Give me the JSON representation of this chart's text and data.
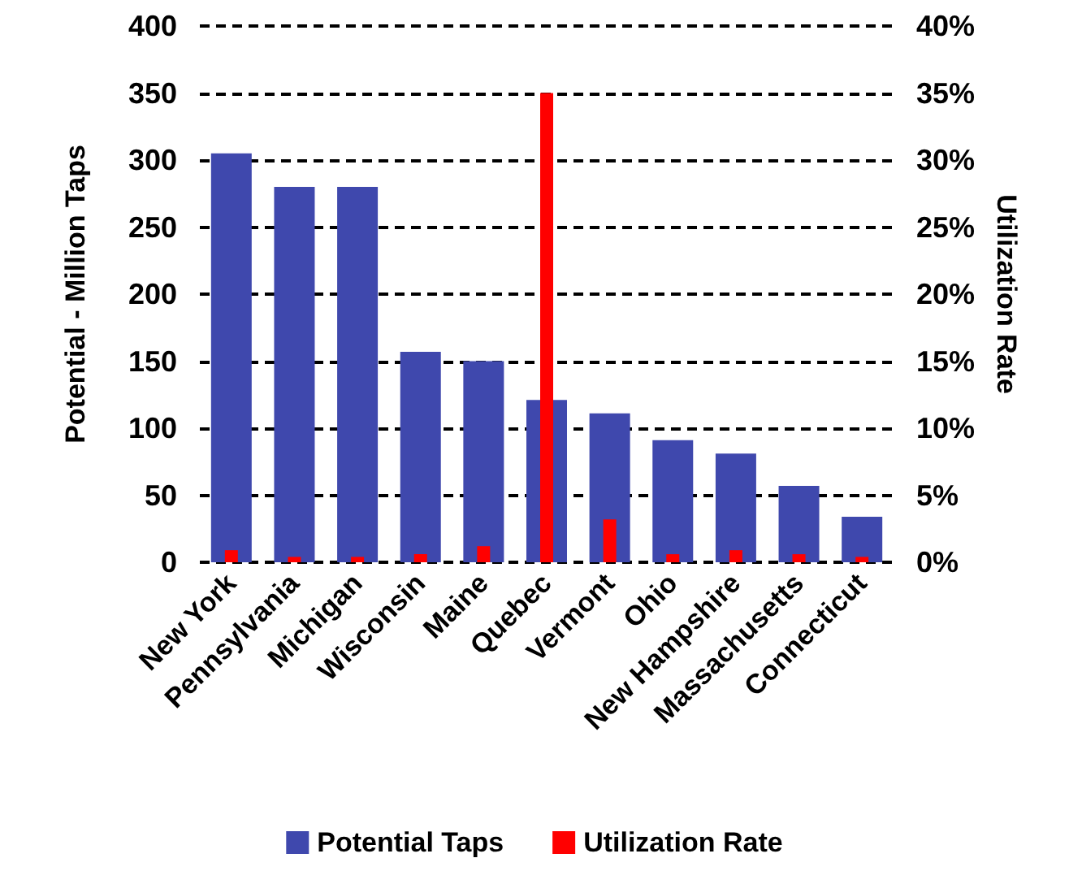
{
  "chart_data": {
    "type": "bar",
    "ylabel": "Potential - Million Taps",
    "y2label": "Utilization Rate",
    "categories": [
      "New York",
      "Pennsylvania",
      "Michigan",
      "Wisconsin",
      "Maine",
      "Quebec",
      "Vermont",
      "Ohio",
      "New Hampshire",
      "Massachusetts",
      "Connecticut"
    ],
    "series": [
      {
        "name": "Potential Taps",
        "color": "#3f48ad",
        "values": [
          305,
          280,
          280,
          157,
          150,
          121,
          111,
          91,
          81,
          57,
          34
        ]
      },
      {
        "name": "Utilization Rate",
        "color": "#ff0000",
        "axis": "y2",
        "values": [
          0.9,
          0.4,
          0.4,
          0.6,
          1.2,
          35,
          3.2,
          0.6,
          0.9,
          0.6,
          0.4
        ]
      }
    ],
    "ylim": [
      0,
      400
    ],
    "yticks": [
      0,
      50,
      100,
      150,
      200,
      250,
      300,
      350,
      400
    ],
    "y2lim": [
      0,
      40
    ],
    "y2ticks": [
      {
        "value": 0,
        "label": "0%"
      },
      {
        "value": 5,
        "label": "5%"
      },
      {
        "value": 10,
        "label": "10%"
      },
      {
        "value": 15,
        "label": "15%"
      },
      {
        "value": 20,
        "label": "20%"
      },
      {
        "value": 25,
        "label": "25%"
      },
      {
        "value": 30,
        "label": "30%"
      },
      {
        "value": 35,
        "label": "35%"
      },
      {
        "value": 40,
        "label": "40%"
      }
    ],
    "grid": "y",
    "line_style": "dashed",
    "legend": "bottom"
  }
}
